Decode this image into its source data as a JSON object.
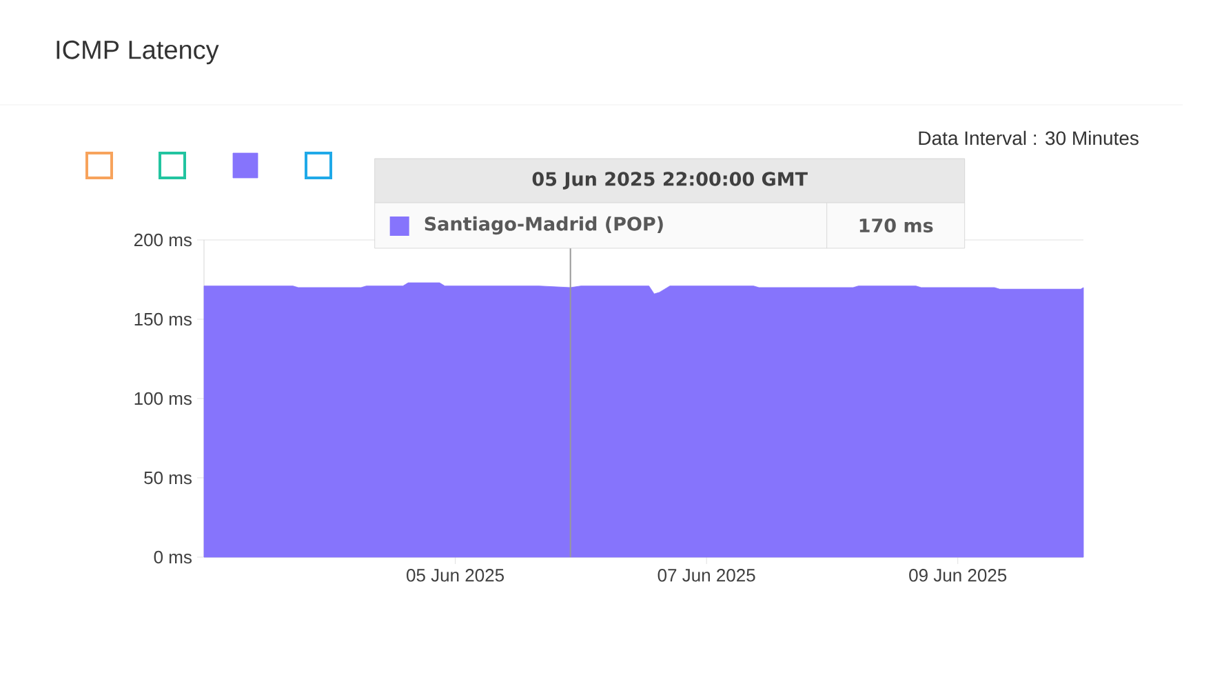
{
  "chart_data": {
    "type": "area",
    "title": "ICMP Latency",
    "annotations": [
      "Data Interval : 30 Minutes",
      "05 Jun 2025 22:00:00 GMT",
      "170 ms"
    ],
    "series": [
      {
        "color": "#f7a35c"
      },
      {
        "color": "#22c4a0"
      },
      {
        "name": "Santiago-Madrid (POP)",
        "color": "#8674fc",
        "x": [
          "2025-06-03T00:00",
          "2025-06-03T09:00",
          "2025-06-03T17:00",
          "2025-06-03T18:00",
          "2025-06-04T06:00",
          "2025-06-04T07:00",
          "2025-06-04T14:00",
          "2025-06-04T15:00",
          "2025-06-04T21:00",
          "2025-06-04T22:00",
          "2025-06-05T08:00",
          "2025-06-05T16:00",
          "2025-06-05T22:00",
          "2025-06-06T00:00",
          "2025-06-06T08:00",
          "2025-06-06T10:00",
          "2025-06-06T13:00",
          "2025-06-06T14:00",
          "2025-06-06T15:00",
          "2025-06-06T17:00",
          "2025-06-07T00:00",
          "2025-06-07T09:00",
          "2025-06-07T10:00",
          "2025-06-08T04:00",
          "2025-06-08T05:00",
          "2025-06-08T16:00",
          "2025-06-08T17:00",
          "2025-06-09T07:00",
          "2025-06-09T08:00",
          "2025-06-09T16:00",
          "2025-06-09T23:30",
          "2025-06-10T00:00"
        ],
        "values": [
          171,
          171,
          171,
          170,
          170,
          171,
          171,
          173,
          173,
          171,
          171,
          171,
          170,
          171,
          171,
          171,
          171,
          166,
          167,
          171,
          171,
          171,
          170,
          170,
          171,
          171,
          170,
          170,
          169,
          169,
          169,
          170
        ]
      },
      {
        "color": "#1fa9e8"
      }
    ],
    "xlim": [
      "2025-06-03",
      "2025-06-10"
    ],
    "xticks": [
      {
        "value": "2025-06-05",
        "label": "05 Jun 2025"
      },
      {
        "value": "2025-06-07",
        "label": "07 Jun 2025"
      },
      {
        "value": "2025-06-09",
        "label": "09 Jun 2025"
      }
    ],
    "ylim": [
      0,
      200
    ],
    "yticks": [
      {
        "value": 0,
        "label": "0 ms"
      },
      {
        "value": 50,
        "label": "50 ms"
      },
      {
        "value": 100,
        "label": "100 ms"
      },
      {
        "value": 150,
        "label": "150 ms"
      },
      {
        "value": 200,
        "label": "200 ms"
      }
    ],
    "ref_lines": [
      {
        "axis": "x",
        "value": "2025-06-05T22:00",
        "color": "#999999"
      }
    ],
    "grid": "y",
    "legend": "top left"
  }
}
